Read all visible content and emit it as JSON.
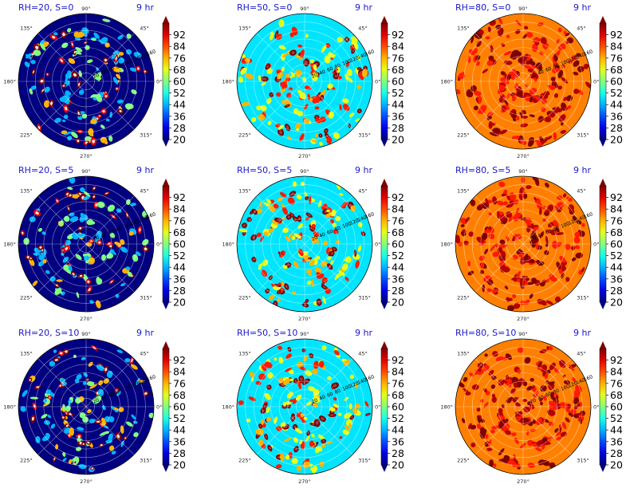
{
  "chart_data": [
    {
      "type": "heatmap",
      "projection": "polar",
      "title": "RH=20, S=0",
      "time_label": "9 hr",
      "background_value": 20,
      "blob_level": "low",
      "radial_ticks": [
        "20",
        "40",
        "60",
        "80",
        "100",
        "120",
        "140",
        "160"
      ],
      "angle_ticks": [
        "0°",
        "45°",
        "90°",
        "135°",
        "180°",
        "225°",
        "270°",
        "315°"
      ],
      "colorbar_ticks": [
        20,
        28,
        36,
        44,
        52,
        60,
        68,
        76,
        84,
        92
      ],
      "colorbar_range": [
        20,
        100
      ],
      "colormap": "jet"
    },
    {
      "type": "heatmap",
      "projection": "polar",
      "title": "RH=50, S=0",
      "time_label": "9 hr",
      "background_value": 48,
      "blob_level": "mid",
      "radial_ticks": [
        "20",
        "40",
        "60",
        "80",
        "100",
        "120",
        "140",
        "160"
      ],
      "angle_ticks": [
        "0°",
        "45°",
        "90°",
        "135°",
        "180°",
        "225°",
        "270°",
        "315°"
      ],
      "colorbar_ticks": [
        20,
        28,
        36,
        44,
        52,
        60,
        68,
        76,
        84,
        92
      ],
      "colorbar_range": [
        20,
        100
      ],
      "colormap": "jet"
    },
    {
      "type": "heatmap",
      "projection": "polar",
      "title": "RH=80, S=0",
      "time_label": "9 hr",
      "background_value": 80,
      "blob_level": "high",
      "radial_ticks": [
        "20",
        "40",
        "60",
        "80",
        "100",
        "120",
        "140",
        "160"
      ],
      "angle_ticks": [
        "0°",
        "45°",
        "90°",
        "135°",
        "180°",
        "225°",
        "270°",
        "315°"
      ],
      "colorbar_ticks": [
        20,
        28,
        36,
        44,
        52,
        60,
        68,
        76,
        84,
        92
      ],
      "colorbar_range": [
        20,
        100
      ],
      "colormap": "jet"
    },
    {
      "type": "heatmap",
      "projection": "polar",
      "title": "RH=20, S=5",
      "time_label": "9 hr",
      "background_value": 20,
      "blob_level": "low",
      "radial_ticks": [
        "20",
        "40",
        "60",
        "80",
        "100",
        "120",
        "140",
        "160"
      ],
      "angle_ticks": [
        "0°",
        "45°",
        "90°",
        "135°",
        "180°",
        "225°",
        "270°",
        "315°"
      ],
      "colorbar_ticks": [
        20,
        28,
        36,
        44,
        52,
        60,
        68,
        76,
        84,
        92
      ],
      "colorbar_range": [
        20,
        100
      ],
      "colormap": "jet"
    },
    {
      "type": "heatmap",
      "projection": "polar",
      "title": "RH=50, S=5",
      "time_label": "9 hr",
      "background_value": 48,
      "blob_level": "mid",
      "radial_ticks": [
        "20",
        "40",
        "60",
        "80",
        "100",
        "120",
        "140",
        "160"
      ],
      "angle_ticks": [
        "0°",
        "45°",
        "90°",
        "135°",
        "180°",
        "225°",
        "270°",
        "315°"
      ],
      "colorbar_ticks": [
        20,
        28,
        36,
        44,
        52,
        60,
        68,
        76,
        84,
        92
      ],
      "colorbar_range": [
        20,
        100
      ],
      "colormap": "jet"
    },
    {
      "type": "heatmap",
      "projection": "polar",
      "title": "RH=80, S=5",
      "time_label": "9 hr",
      "background_value": 80,
      "blob_level": "high",
      "radial_ticks": [
        "20",
        "40",
        "60",
        "80",
        "100",
        "120",
        "140",
        "160"
      ],
      "angle_ticks": [
        "0°",
        "45°",
        "90°",
        "135°",
        "180°",
        "225°",
        "270°",
        "315°"
      ],
      "colorbar_ticks": [
        20,
        28,
        36,
        44,
        52,
        60,
        68,
        76,
        84,
        92
      ],
      "colorbar_range": [
        20,
        100
      ],
      "colormap": "jet"
    },
    {
      "type": "heatmap",
      "projection": "polar",
      "title": "RH=20, S=10",
      "time_label": "9 hr",
      "background_value": 20,
      "blob_level": "low",
      "radial_ticks": [
        "20",
        "40",
        "60",
        "80",
        "100",
        "120",
        "140",
        "160"
      ],
      "angle_ticks": [
        "0°",
        "45°",
        "90°",
        "135°",
        "180°",
        "225°",
        "270°",
        "315°"
      ],
      "colorbar_ticks": [
        20,
        28,
        36,
        44,
        52,
        60,
        68,
        76,
        84,
        92
      ],
      "colorbar_range": [
        20,
        100
      ],
      "colormap": "jet"
    },
    {
      "type": "heatmap",
      "projection": "polar",
      "title": "RH=50, S=10",
      "time_label": "9 hr",
      "background_value": 48,
      "blob_level": "mid",
      "radial_ticks": [
        "20",
        "40",
        "60",
        "80",
        "100",
        "120",
        "140",
        "160"
      ],
      "angle_ticks": [
        "0°",
        "45°",
        "90°",
        "135°",
        "180°",
        "225°",
        "270°",
        "315°"
      ],
      "colorbar_ticks": [
        20,
        28,
        36,
        44,
        52,
        60,
        68,
        76,
        84,
        92
      ],
      "colorbar_range": [
        20,
        100
      ],
      "colormap": "jet"
    },
    {
      "type": "heatmap",
      "projection": "polar",
      "title": "RH=80, S=10",
      "time_label": "9 hr",
      "background_value": 80,
      "blob_level": "high",
      "radial_ticks": [
        "20",
        "40",
        "60",
        "80",
        "100",
        "120",
        "140",
        "160"
      ],
      "angle_ticks": [
        "0°",
        "45°",
        "90°",
        "135°",
        "180°",
        "225°",
        "270°",
        "315°"
      ],
      "colorbar_ticks": [
        20,
        28,
        36,
        44,
        52,
        60,
        68,
        76,
        84,
        92
      ],
      "colorbar_range": [
        20,
        100
      ],
      "colormap": "jet"
    }
  ]
}
